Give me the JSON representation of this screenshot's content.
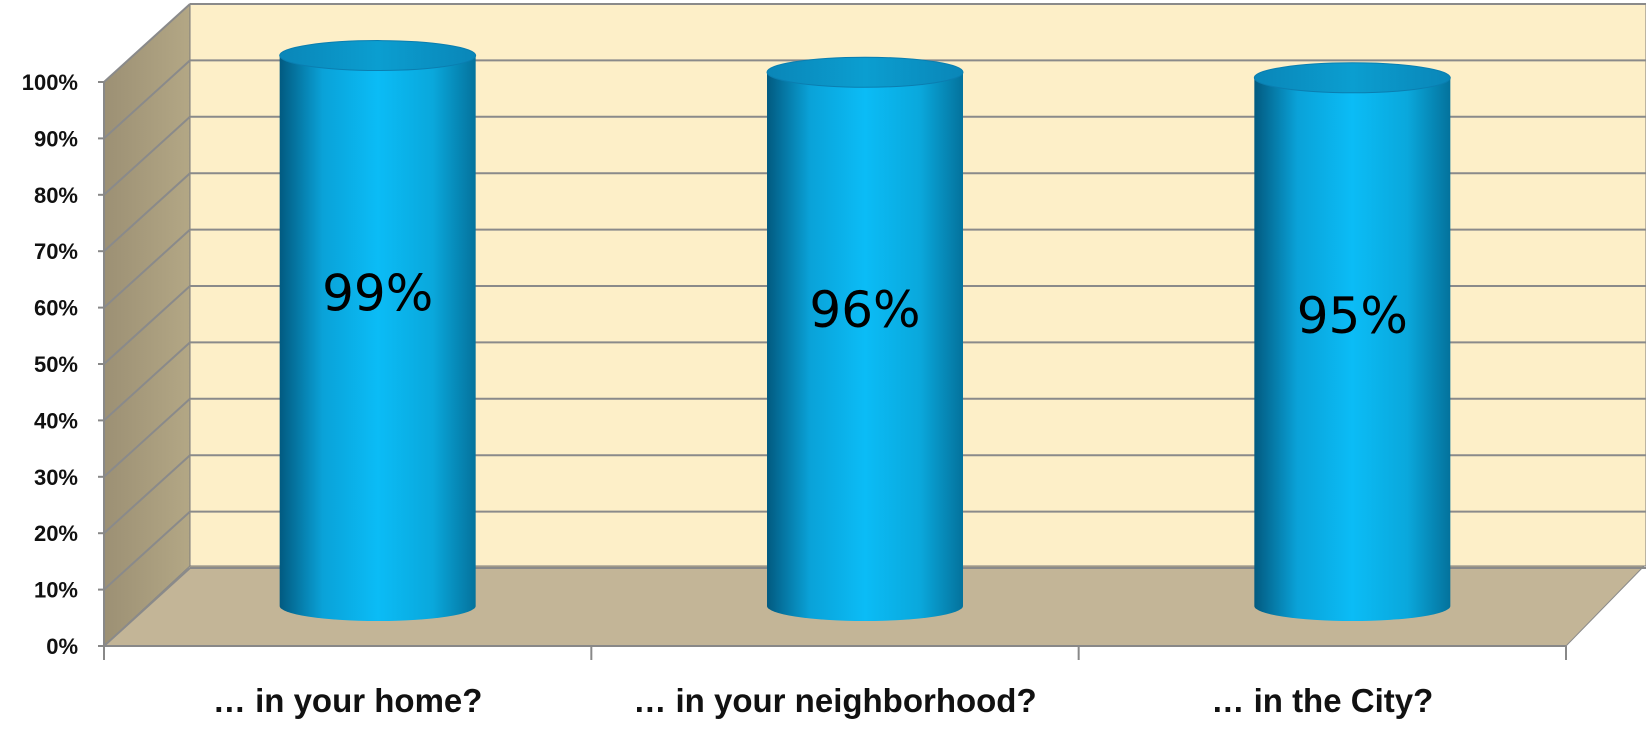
{
  "chart_data": {
    "type": "bar",
    "style": "3d-cylinder",
    "categories": [
      "… in your home?",
      "… in your neighborhood?",
      "… in the City?"
    ],
    "values": [
      99,
      96,
      95
    ],
    "value_labels": [
      "99%",
      "96%",
      "95%"
    ],
    "title": "",
    "xlabel": "",
    "ylabel": "",
    "ylim": [
      0,
      100
    ],
    "yticks": [
      0,
      10,
      20,
      30,
      40,
      50,
      60,
      70,
      80,
      90,
      100
    ],
    "ytick_labels": [
      "0%",
      "10%",
      "20%",
      "30%",
      "40%",
      "50%",
      "60%",
      "70%",
      "80%",
      "90%",
      "100%"
    ],
    "grid": true,
    "legend": "none",
    "colors": {
      "bar": "#0bb0e8",
      "back_wall": "#fdefc8",
      "side_wall": "#a89c7d",
      "floor": "#c3b597",
      "gridline": "#8a8a8a",
      "axis": "#888888"
    }
  }
}
